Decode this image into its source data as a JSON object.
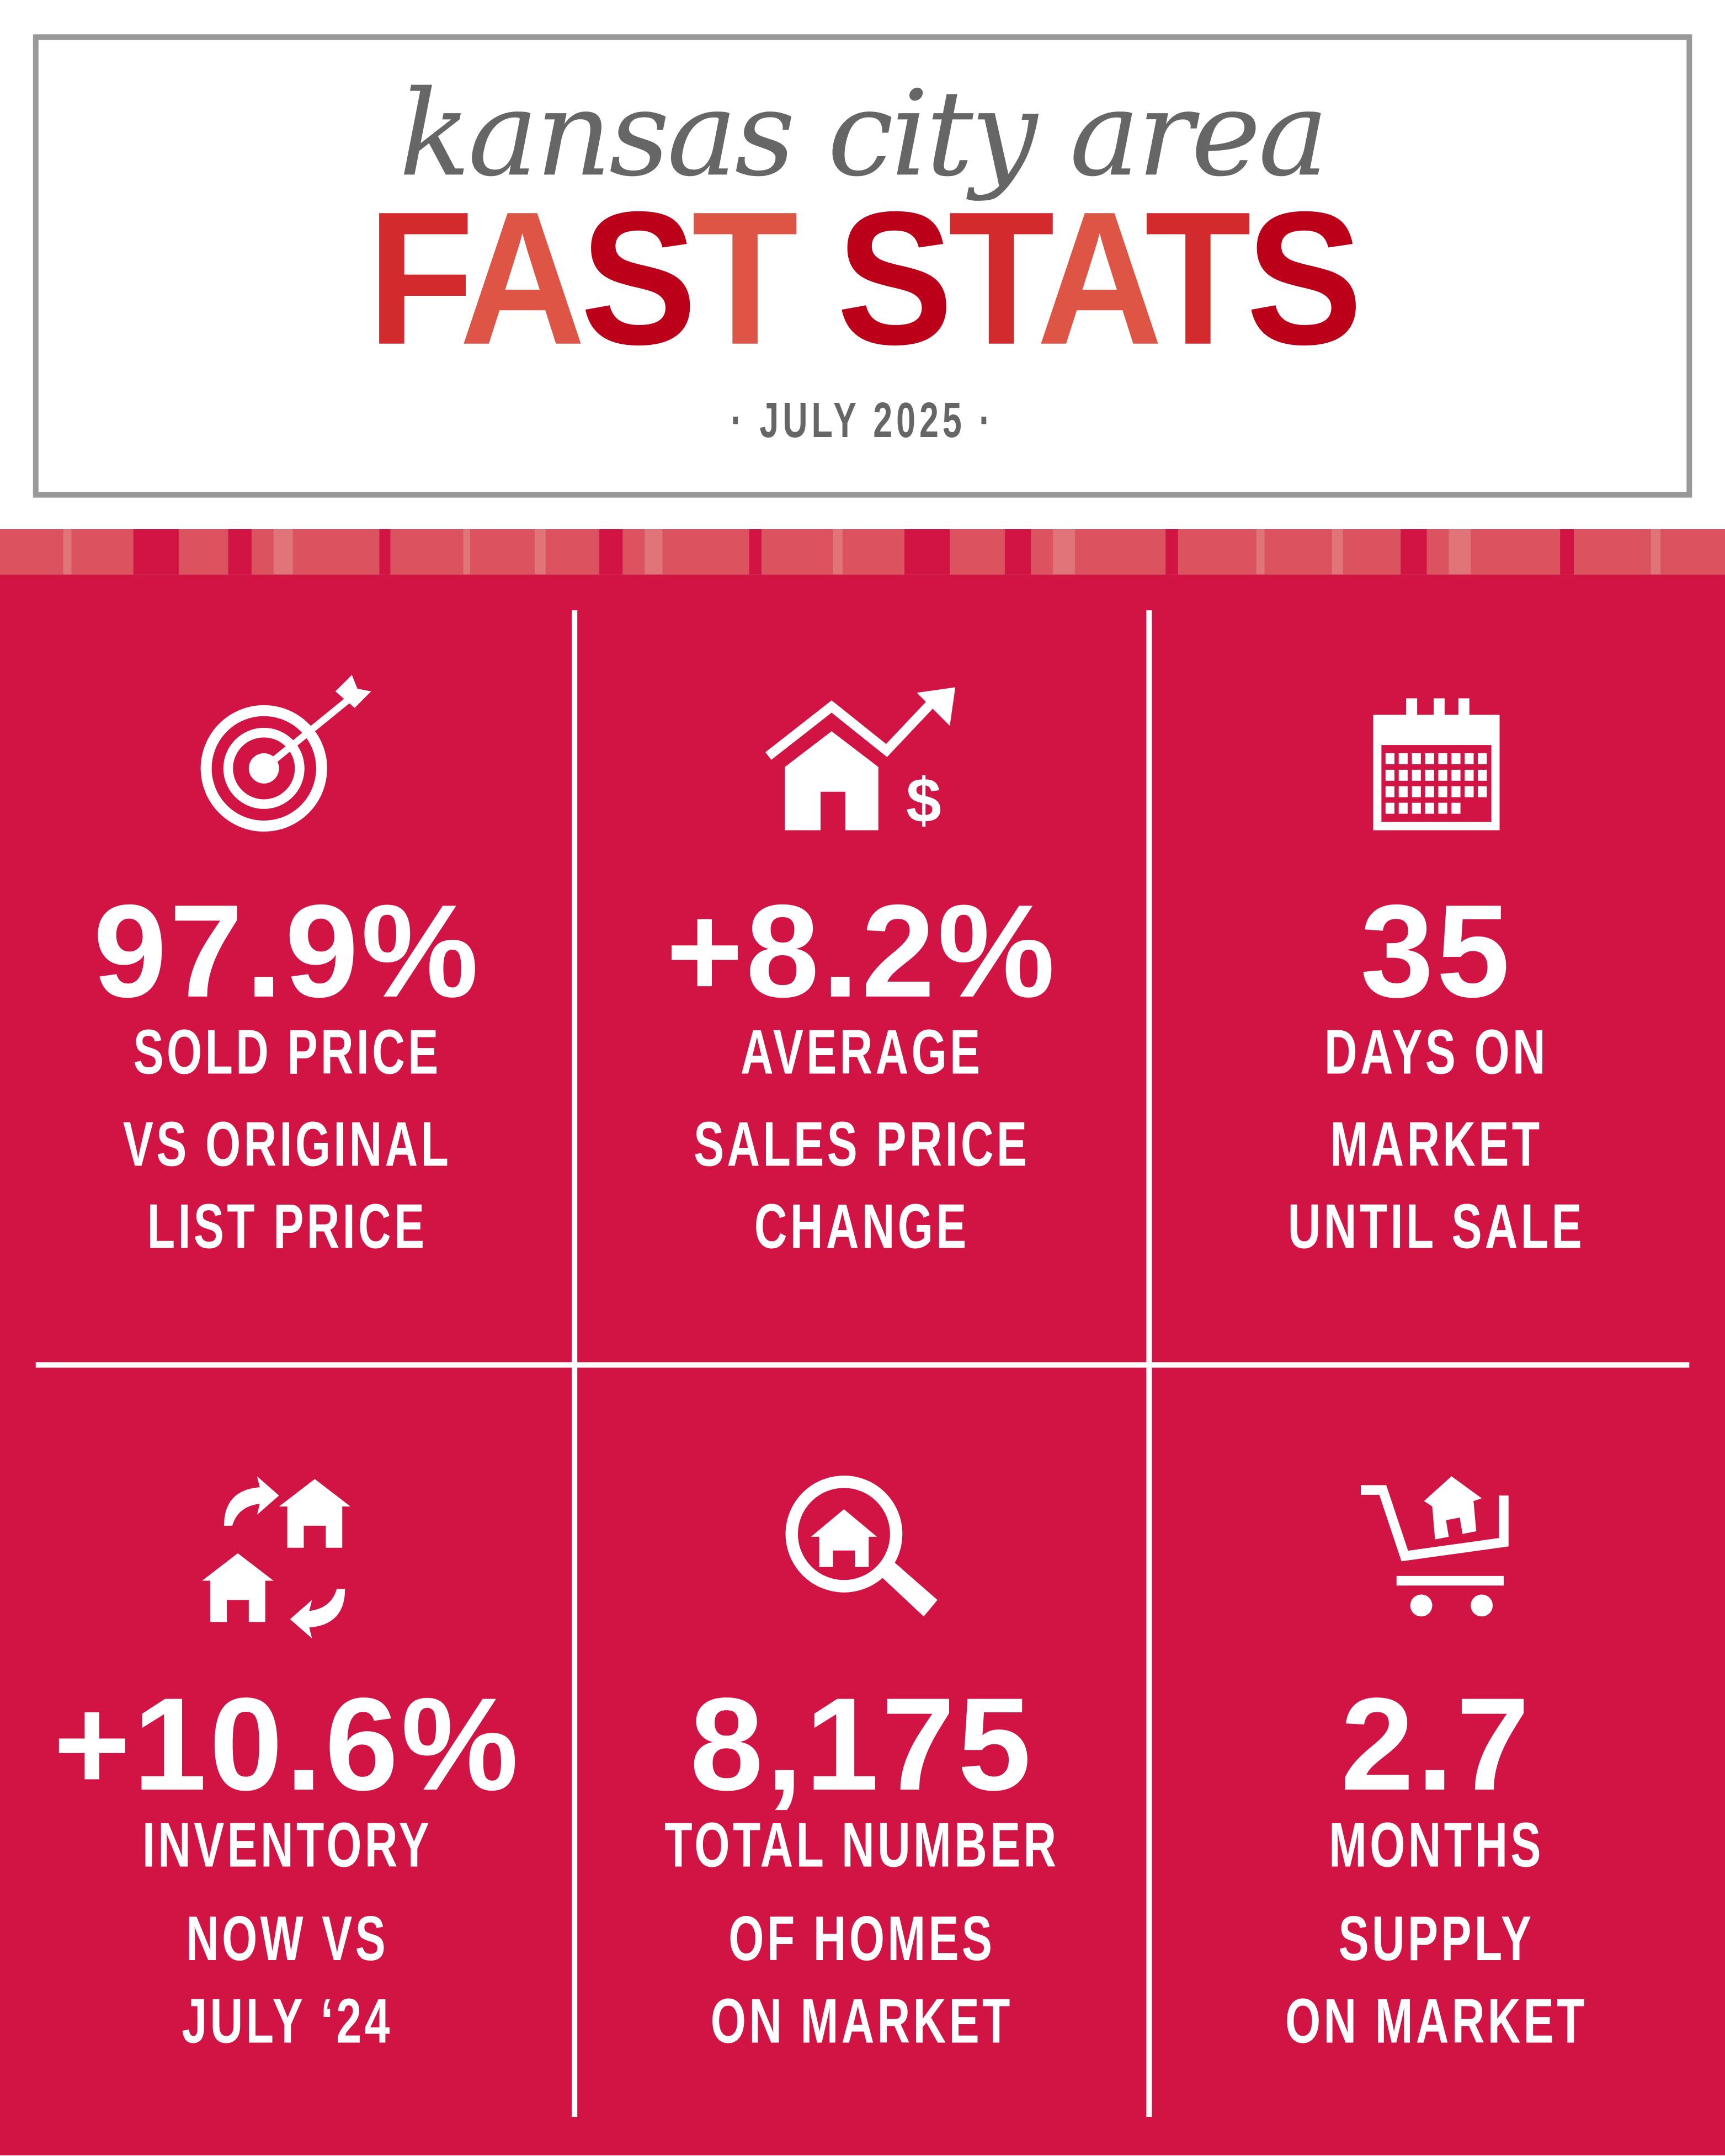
{
  "header": {
    "script_title": "kansas city area",
    "title_letters": [
      "F",
      "A",
      "S",
      "T",
      " ",
      "S",
      "T",
      "A",
      "T",
      "S"
    ],
    "date": "JULY 2025",
    "dot": "·"
  },
  "colors": {
    "background_red": "#d11444",
    "stripe": "#dc5360",
    "red1": "#d32b2d",
    "red2": "#de5546",
    "red3": "#bc0019",
    "gray": "#666666"
  },
  "stats": [
    {
      "icon": "target-icon",
      "value": "97.9%",
      "label": [
        "SOLD PRICE",
        "VS ORIGINAL",
        "LIST PRICE"
      ]
    },
    {
      "icon": "house-price-up-icon",
      "value": "+8.2%",
      "label": [
        "AVERAGE",
        "SALES PRICE",
        "CHANGE"
      ]
    },
    {
      "icon": "calendar-icon",
      "value": "35",
      "label": [
        "DAYS ON",
        "MARKET",
        "UNTIL SALE"
      ]
    },
    {
      "icon": "houses-exchange-icon",
      "value": "+10.6%",
      "label": [
        "INVENTORY",
        "NOW VS",
        "JULY ‘24"
      ]
    },
    {
      "icon": "house-search-icon",
      "value": "8,175",
      "label": [
        "TOTAL NUMBER",
        "OF HOMES",
        "ON MARKET"
      ]
    },
    {
      "icon": "house-cart-icon",
      "value": "2.7",
      "label": [
        "MONTHS",
        "SUPPLY",
        "ON MARKET"
      ]
    }
  ]
}
